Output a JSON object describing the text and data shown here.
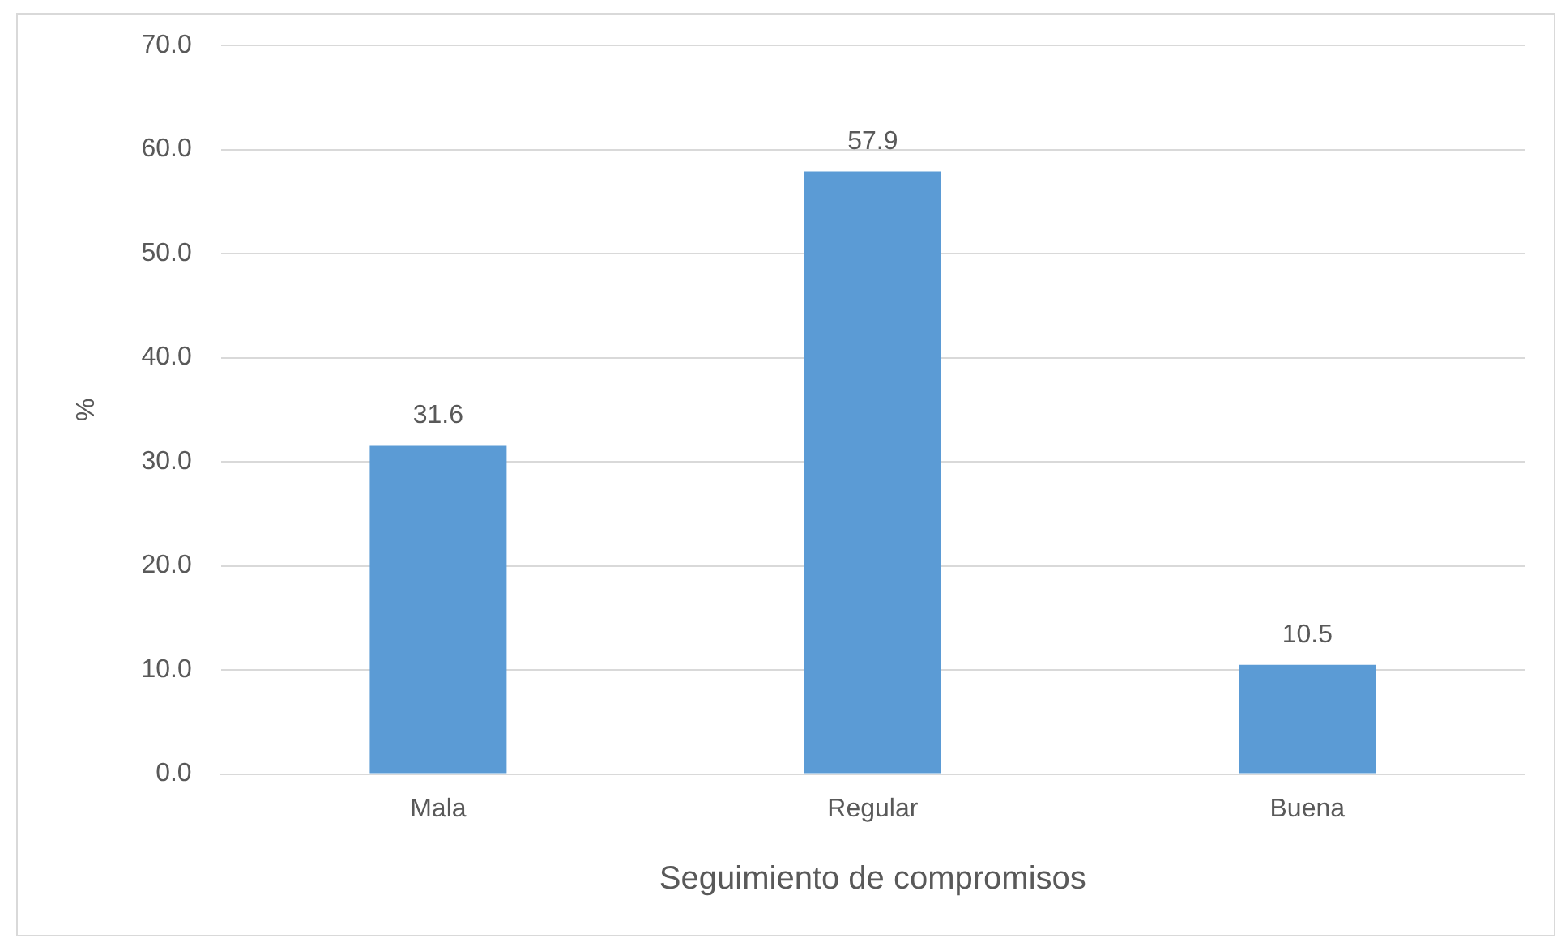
{
  "chart_data": {
    "type": "bar",
    "xlabel": "Seguimiento de compromisos",
    "ylabel": "%",
    "categories": [
      "Mala",
      "Regular",
      "Buena"
    ],
    "values": [
      31.6,
      57.9,
      10.5
    ],
    "color": "#5b9bd5",
    "ylim": [
      0,
      70
    ],
    "yticks": [
      {
        "value": 0,
        "label": "0.0"
      },
      {
        "value": 10,
        "label": "10.0"
      },
      {
        "value": 20,
        "label": "20.0"
      },
      {
        "value": 30,
        "label": "30.0"
      },
      {
        "value": 40,
        "label": "40.0"
      },
      {
        "value": 50,
        "label": "50.0"
      },
      {
        "value": 60,
        "label": "60.0"
      },
      {
        "value": 70,
        "label": "70.0"
      }
    ],
    "grid": "y",
    "data_labels": true,
    "legend": false
  }
}
